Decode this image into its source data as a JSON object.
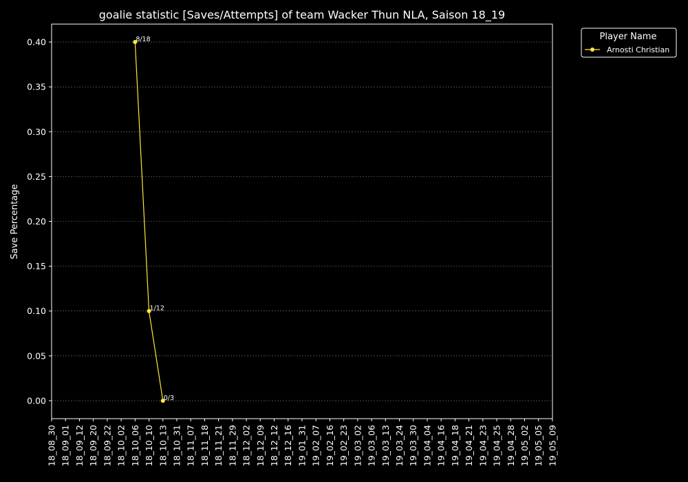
{
  "chart_data": {
    "type": "line",
    "title": "goalie statistic [Saves/Attempts] of team Wacker Thun NLA, Saison 18_19",
    "xlabel": "",
    "ylabel": "Save Percentage",
    "categories": [
      "18_08_30",
      "18_09_01",
      "18_09_12",
      "18_09_20",
      "18_09_22",
      "18_10_02",
      "18_10_06",
      "18_10_10",
      "18_10_13",
      "18_10_31",
      "18_11_07",
      "18_11_18",
      "18_11_21",
      "18_11_29",
      "18_12_02",
      "18_12_09",
      "18_12_12",
      "18_12_16",
      "19_01_31",
      "19_02_07",
      "19_02_16",
      "19_02_23",
      "19_03_02",
      "19_03_06",
      "19_03_13",
      "19_03_24",
      "19_03_30",
      "19_04_04",
      "19_04_16",
      "19_04_18",
      "19_04_21",
      "19_04_23",
      "19_04_25",
      "19_04_28",
      "19_05_02",
      "19_05_05",
      "19_05_09"
    ],
    "ylim": [
      -0.02,
      0.42
    ],
    "yticks": [
      "0.00",
      "0.05",
      "0.10",
      "0.15",
      "0.20",
      "0.25",
      "0.30",
      "0.35",
      "0.40"
    ],
    "grid": true,
    "legend": {
      "title": "Player Name",
      "placement": "upper-right-outside"
    },
    "series": [
      {
        "name": "Arnosti Christian",
        "color": "#ffeb3b",
        "points": [
          {
            "x": "18_10_06",
            "y": 0.4,
            "label": "8/18"
          },
          {
            "x": "18_10_10",
            "y": 0.1,
            "label": "1/12"
          },
          {
            "x": "18_10_13",
            "y": 0.0,
            "label": "0/3"
          }
        ]
      }
    ]
  }
}
